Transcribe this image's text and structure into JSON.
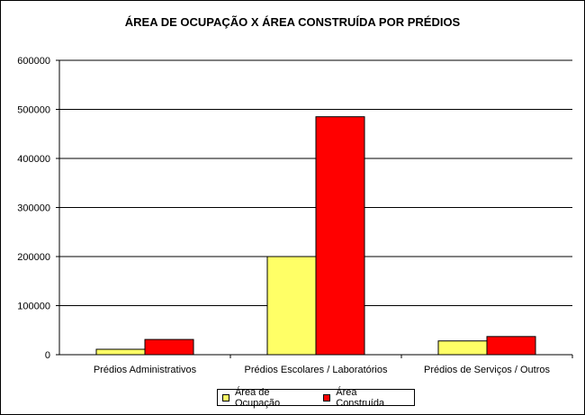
{
  "chart_data": {
    "type": "bar",
    "title": "ÁREA DE OCUPAÇÃO X ÁREA CONSTRUÍDA POR PRÉDIOS",
    "categories": [
      "Prédios Administrativos",
      "Prédios Escolares / Laboratórios",
      "Prédios de Serviços / Outros"
    ],
    "series": [
      {
        "name": "Área de Ocupação",
        "color": "#ffff66",
        "values": [
          11000,
          200000,
          28000
        ]
      },
      {
        "name": "Área Construída",
        "color": "#ff0000",
        "values": [
          31000,
          485000,
          37000
        ]
      }
    ],
    "ylim": [
      0,
      600000
    ],
    "yticks": [
      "0",
      "100000",
      "200000",
      "300000",
      "400000",
      "500000",
      "600000"
    ],
    "grid": true,
    "legend_position": "bottom"
  }
}
